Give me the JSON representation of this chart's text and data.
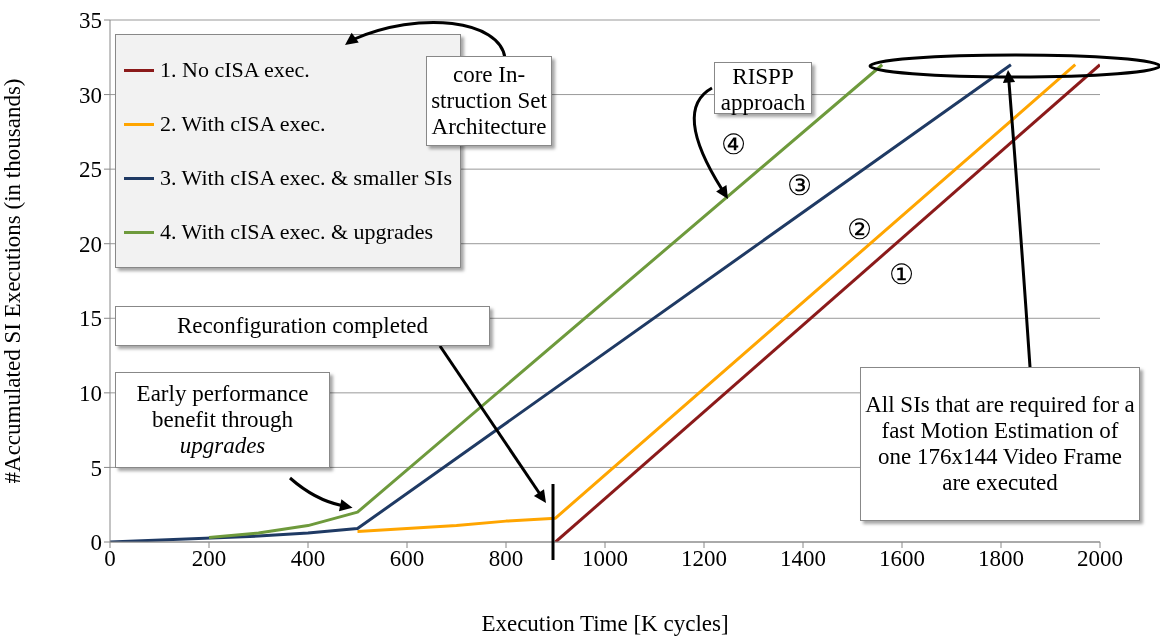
{
  "chart_data": {
    "type": "line",
    "xlabel": "Execution Time [K cycles]",
    "ylabel": "#Accumulated SI Executions (in thousands)",
    "xlim": [
      0,
      2000
    ],
    "xticks": [
      0,
      200,
      400,
      600,
      800,
      1000,
      1200,
      1400,
      1600,
      1800,
      2000
    ],
    "ylim": [
      0,
      35
    ],
    "yticks": [
      0,
      5,
      10,
      15,
      20,
      25,
      30,
      35
    ],
    "grid": "y",
    "legend": "top left",
    "marker": "none",
    "line_style": "solid",
    "series": [
      {
        "name": "1. No cISA exec.",
        "color": "#8b1a1a",
        "x": [
          900,
          2000
        ],
        "values": [
          0,
          32
        ]
      },
      {
        "name": "2. With cISA exec.",
        "color": "#ffa500",
        "x": [
          500,
          600,
          700,
          800,
          900,
          1950
        ],
        "values": [
          0.7,
          0.9,
          1.1,
          1.4,
          1.6,
          32
        ]
      },
      {
        "name": "3. With cISA exec. & smaller SIs",
        "color": "#1f3a64",
        "x": [
          0,
          300,
          400,
          500,
          1820
        ],
        "values": [
          0,
          0.4,
          0.6,
          0.9,
          32
        ]
      },
      {
        "name": "4. With cISA exec. & upgrades",
        "color": "#6e9a3c",
        "x": [
          200,
          300,
          400,
          500,
          1560
        ],
        "values": [
          0.3,
          0.6,
          1.1,
          2,
          32
        ]
      }
    ],
    "annotations": [
      "core In-struction Set Architecture",
      "RISPP approach",
      "All SIs that are required for a fast Motion Estimation of one 176x144 Video Frame are executed",
      "Reconfiguration completed",
      {
        "text": "Early performance benefit through upgrades",
        "x": 490,
        "y": 2.3
      },
      "①",
      "②",
      "③",
      "④"
    ]
  }
}
